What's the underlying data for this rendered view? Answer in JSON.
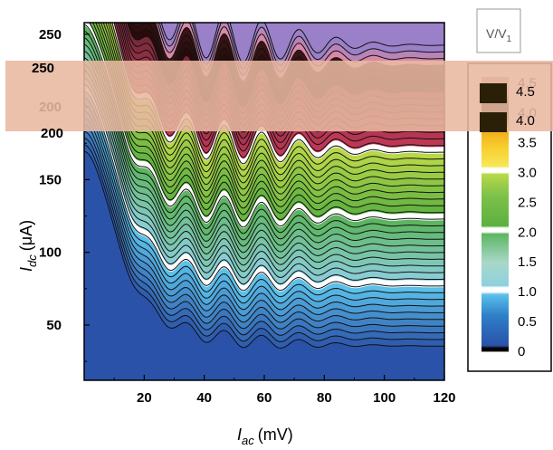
{
  "chart_data": {
    "type": "heatmap",
    "title": "",
    "xlabel": {
      "symbol": "I",
      "subscript": "ac",
      "unit": "(mV)"
    },
    "ylabel": {
      "symbol": "I",
      "subscript": "dc",
      "unit": "(μA)"
    },
    "x_ticks": [
      "20",
      "40",
      "60",
      "80",
      "100",
      "120"
    ],
    "y_ticks": [
      "50",
      "100",
      "150",
      "200",
      "250"
    ],
    "xlim": [
      0,
      120
    ],
    "ylim": [
      12,
      258
    ],
    "grid": false,
    "colorbar": {
      "title": "V/V",
      "title_subscript": "1",
      "ticks": [
        "0",
        "0.5",
        "1.0",
        "1.5",
        "2.0",
        "2.5",
        "3.0",
        "3.5",
        "4.0",
        "4.5"
      ],
      "range": [
        0,
        4.6
      ],
      "stops": [
        {
          "value": 0.0,
          "color": "#000000"
        },
        {
          "value": 0.06,
          "color": "#000000"
        },
        {
          "value": 0.1,
          "color": "#2a52a8"
        },
        {
          "value": 0.6,
          "color": "#2e7ec8"
        },
        {
          "value": 0.96,
          "color": "#5bc0ea"
        },
        {
          "value": 1.0,
          "color": "#ffffff"
        },
        {
          "value": 1.08,
          "color": "#ffffff"
        },
        {
          "value": 1.1,
          "color": "#8fd0e0"
        },
        {
          "value": 1.5,
          "color": "#a8d8c8"
        },
        {
          "value": 1.98,
          "color": "#5cb560"
        },
        {
          "value": 2.0,
          "color": "#ffffff"
        },
        {
          "value": 2.08,
          "color": "#ffffff"
        },
        {
          "value": 2.1,
          "color": "#5cb040"
        },
        {
          "value": 2.6,
          "color": "#7cc04a"
        },
        {
          "value": 2.98,
          "color": "#b8d848"
        },
        {
          "value": 3.0,
          "color": "#ffffff"
        },
        {
          "value": 3.08,
          "color": "#ffffff"
        },
        {
          "value": 3.1,
          "color": "#f6e85a"
        },
        {
          "value": 3.4,
          "color": "#f8d030"
        },
        {
          "value": 3.75,
          "color": "#f0a818"
        },
        {
          "value": 3.9,
          "color": "#3a2a10"
        },
        {
          "value": 4.2,
          "color": "#2a1e0a"
        },
        {
          "value": 4.3,
          "color": "#a8806a"
        },
        {
          "value": 4.6,
          "color": "#c89a86"
        }
      ]
    },
    "contour_bands": [
      {
        "from": 0.0,
        "to": 1.0,
        "color_range": [
          "#2a52a8",
          "#5bc0ea"
        ]
      },
      {
        "from": 1.0,
        "to": 2.0,
        "color_range": [
          "#8fd0e0",
          "#5cb560"
        ]
      },
      {
        "from": 2.0,
        "to": 3.0,
        "color_range": [
          "#5cb040",
          "#b8d848"
        ]
      },
      {
        "from": 3.0,
        "to": 3.9,
        "color_range": [
          "#c83a5a",
          "#7a2a3a"
        ]
      },
      {
        "from": 3.9,
        "to": 4.3,
        "color_range": [
          "#2a0a0a",
          "#3a1414"
        ]
      },
      {
        "from": 4.3,
        "to": 4.6,
        "color_range": [
          "#d888a8",
          "#9a80c8"
        ]
      }
    ],
    "overlay": {
      "color": "#e8b8a0",
      "y_range": [
        200,
        258
      ],
      "labels": [
        "250",
        "200",
        "4.5",
        "4.0"
      ]
    }
  }
}
